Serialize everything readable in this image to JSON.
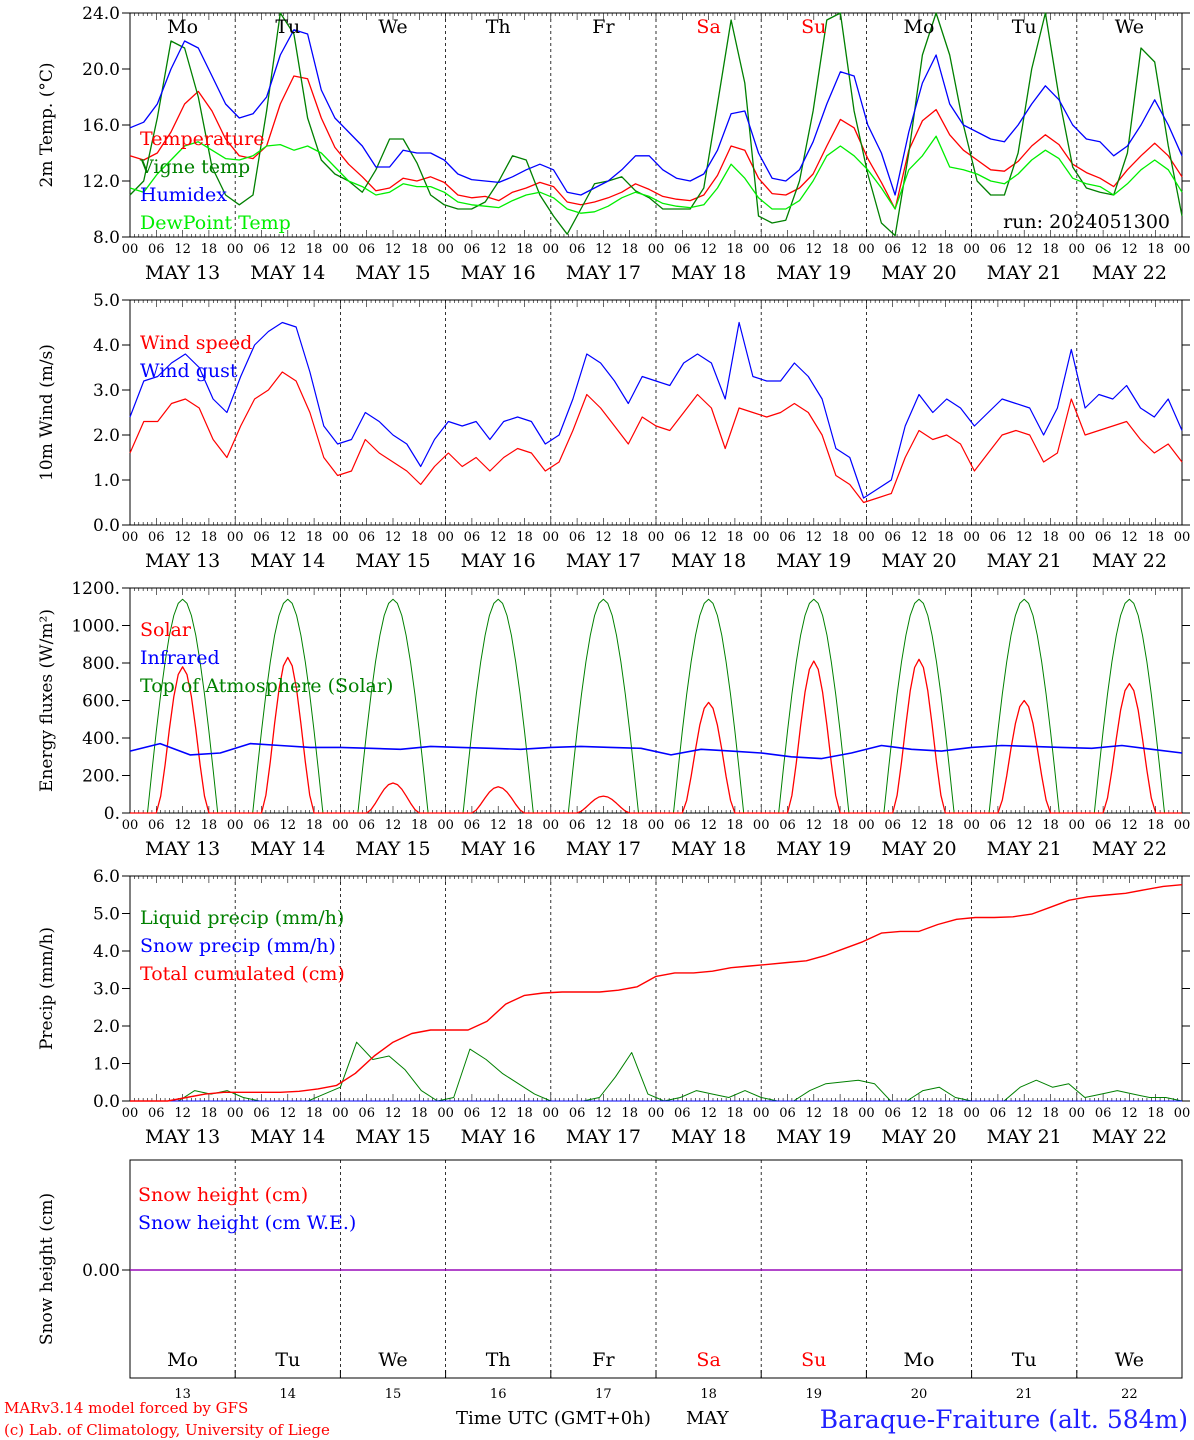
{
  "days": [
    "MAY 13",
    "MAY 14",
    "MAY 15",
    "MAY 16",
    "MAY 17",
    "MAY 18",
    "MAY 19",
    "MAY 20",
    "MAY 21",
    "MAY 22"
  ],
  "weekdays": [
    "Mo",
    "Tu",
    "We",
    "Th",
    "Fr",
    "Sa",
    "Su",
    "Mo",
    "Tu",
    "We"
  ],
  "weekday_colors": [
    "#000000",
    "#000000",
    "#000000",
    "#000000",
    "#000000",
    "#ff0000",
    "#ff0000",
    "#000000",
    "#000000",
    "#000000"
  ],
  "hour_ticks": [
    "00",
    "06",
    "12",
    "18"
  ],
  "day_numbers": [
    "13",
    "14",
    "15",
    "16",
    "17",
    "18",
    "19",
    "20",
    "21",
    "22"
  ],
  "run_label": "run: 2024051300",
  "footer": {
    "credit_line1": "MARv3.14 model forced by GFS",
    "credit_line2": "(c) Lab. of Climatology, University of Liege",
    "time_label": "Time UTC (GMT+0h)",
    "month": "MAY",
    "station": "Baraque-Fraiture (alt. 584m)"
  },
  "chart_data": [
    {
      "type": "line",
      "id": "temp",
      "ylabel": "2m Temp. (°C)",
      "ylim": [
        8,
        24
      ],
      "yticks": [
        "8.0",
        "12.0",
        "16.0",
        "20.0",
        "24.0"
      ],
      "series": [
        {
          "name": "Temperature",
          "color": "#ff0000",
          "values": [
            13.8,
            13.5,
            14,
            15.5,
            17.5,
            18.4,
            17,
            15,
            13.8,
            13.6,
            14.5,
            17.5,
            19.5,
            19.3,
            16.5,
            14.4,
            13.2,
            12.3,
            11.3,
            11.5,
            12.2,
            12,
            12.3,
            11.9,
            11,
            10.8,
            10.9,
            10.6,
            11.2,
            11.5,
            11.9,
            11.6,
            10.5,
            10.3,
            10.5,
            10.8,
            11.2,
            11.8,
            11.4,
            10.9,
            10.7,
            10.6,
            11,
            12.4,
            14.5,
            14.2,
            12.2,
            11.1,
            11,
            11.5,
            12.5,
            14.5,
            16.4,
            15.8,
            13.6,
            11.9,
            10,
            14.2,
            16.3,
            17.1,
            15.3,
            14.2,
            13.5,
            12.8,
            12.7,
            13.4,
            14.5,
            15.3,
            14.6,
            13.2,
            12.6,
            12.2,
            11.6,
            12.8,
            13.8,
            14.7,
            13.8,
            12.3
          ]
        },
        {
          "name": "Vigne temp",
          "color": "#008000",
          "values": [
            11,
            12,
            16.5,
            22,
            21.5,
            18,
            13,
            11,
            10.3,
            11,
            17,
            24,
            22.5,
            16.5,
            13.5,
            12.5,
            12,
            11.2,
            12.8,
            15,
            15,
            13.3,
            11,
            10.3,
            10,
            10,
            10.5,
            12,
            13.8,
            13.5,
            11,
            9.5,
            8.2,
            10,
            11.8,
            12,
            12.3,
            11.3,
            10.8,
            10,
            10,
            10,
            11.5,
            17.5,
            23.5,
            19,
            9.5,
            9,
            9.2,
            12,
            17,
            23.5,
            24,
            17,
            12.5,
            9,
            8.1,
            14,
            21,
            24.5,
            21,
            16,
            12,
            11,
            11,
            14,
            20,
            24.5,
            18,
            13,
            11.5,
            11.2,
            11,
            14,
            21.5,
            20.5,
            14.5,
            9.5
          ]
        },
        {
          "name": "Humidex",
          "color": "#0000ff",
          "values": [
            15.8,
            16.2,
            17.5,
            20,
            22,
            21.5,
            19.5,
            17.5,
            16.5,
            16.8,
            18,
            21,
            22.8,
            22.5,
            18.5,
            16.5,
            15.5,
            14.5,
            13,
            13,
            14.2,
            14,
            14,
            13.5,
            12.5,
            12.1,
            12,
            11.9,
            12.3,
            12.8,
            13.2,
            12.8,
            11.2,
            11,
            11.5,
            12,
            12.8,
            13.8,
            13.8,
            12.8,
            12.2,
            12,
            12.5,
            14.2,
            16.8,
            17,
            14,
            12.2,
            12,
            12.8,
            14.8,
            17.5,
            19.8,
            19.5,
            16,
            14,
            11,
            15.5,
            19,
            21,
            17.5,
            16,
            15.5,
            15,
            14.8,
            16,
            17.5,
            18.8,
            17.8,
            16,
            15,
            14.8,
            13.8,
            14.5,
            16,
            17.8,
            16,
            13.8
          ]
        },
        {
          "name": "DewPoint Temp",
          "color": "#00ee00",
          "values": [
            11.5,
            11.2,
            12.5,
            13.5,
            14.5,
            14.8,
            14.2,
            13.6,
            13.5,
            13.8,
            14.5,
            14.6,
            14.2,
            14.5,
            14,
            13,
            12,
            11.6,
            11,
            11.2,
            11.8,
            11.6,
            11.6,
            11.2,
            10.5,
            10.3,
            10.2,
            10.1,
            10.6,
            11,
            11.2,
            10.8,
            10,
            9.7,
            9.8,
            10.2,
            10.8,
            11.2,
            10.9,
            10.4,
            10.2,
            10.1,
            10.3,
            11.5,
            13.2,
            12.2,
            10.8,
            10,
            10,
            10.6,
            12,
            13.8,
            14.5,
            13.8,
            12.8,
            11.5,
            10,
            12.8,
            13.8,
            15.2,
            13,
            12.8,
            12.5,
            12,
            11.8,
            12.5,
            13.5,
            14.2,
            13.6,
            12.2,
            11.8,
            11.6,
            11,
            11.8,
            12.8,
            13.5,
            12.8,
            11.2
          ]
        }
      ]
    },
    {
      "type": "line",
      "id": "wind",
      "ylabel": "10m Wind (m/s)",
      "ylim": [
        0,
        5
      ],
      "yticks": [
        "0.0",
        "1.0",
        "2.0",
        "3.0",
        "4.0",
        "5.0"
      ],
      "series": [
        {
          "name": "Wind speed",
          "color": "#ff0000",
          "values": [
            1.6,
            2.3,
            2.3,
            2.7,
            2.8,
            2.6,
            1.9,
            1.5,
            2.2,
            2.8,
            3.0,
            3.4,
            3.2,
            2.5,
            1.5,
            1.1,
            1.2,
            1.9,
            1.6,
            1.4,
            1.2,
            0.9,
            1.3,
            1.6,
            1.3,
            1.5,
            1.2,
            1.5,
            1.7,
            1.6,
            1.2,
            1.4,
            2.1,
            2.9,
            2.6,
            2.2,
            1.8,
            2.4,
            2.2,
            2.1,
            2.5,
            2.9,
            2.6,
            1.7,
            2.6,
            2.5,
            2.4,
            2.5,
            2.7,
            2.5,
            2.0,
            1.1,
            0.9,
            0.5,
            0.6,
            0.7,
            1.5,
            2.1,
            1.9,
            2.0,
            1.8,
            1.2,
            1.6,
            2.0,
            2.1,
            2.0,
            1.4,
            1.6,
            2.8,
            2.0,
            2.1,
            2.2,
            2.3,
            1.9,
            1.6,
            1.8,
            1.4
          ]
        },
        {
          "name": "Wind gust",
          "color": "#0000ff",
          "values": [
            2.4,
            3.2,
            3.3,
            3.6,
            3.8,
            3.5,
            2.8,
            2.5,
            3.3,
            4.0,
            4.3,
            4.5,
            4.4,
            3.4,
            2.2,
            1.8,
            1.9,
            2.5,
            2.3,
            2.0,
            1.8,
            1.3,
            1.9,
            2.3,
            2.2,
            2.3,
            1.9,
            2.3,
            2.4,
            2.3,
            1.8,
            2.0,
            2.8,
            3.8,
            3.6,
            3.2,
            2.7,
            3.3,
            3.2,
            3.1,
            3.6,
            3.8,
            3.6,
            2.8,
            4.5,
            3.3,
            3.2,
            3.2,
            3.6,
            3.3,
            2.8,
            1.7,
            1.5,
            0.6,
            0.8,
            1.0,
            2.2,
            2.9,
            2.5,
            2.8,
            2.6,
            2.2,
            2.5,
            2.8,
            2.7,
            2.6,
            2.0,
            2.6,
            3.9,
            2.6,
            2.9,
            2.8,
            3.1,
            2.6,
            2.4,
            2.8,
            2.1
          ]
        }
      ]
    },
    {
      "type": "line",
      "id": "energy",
      "ylabel": "Energy fluxes (W/m²)",
      "ylim": [
        0,
        1200
      ],
      "yticks": [
        "0.",
        "200.",
        "400.",
        "600.",
        "800.",
        "1000.",
        "1200."
      ],
      "series": [
        {
          "name": "Solar",
          "color": "#ff0000"
        },
        {
          "name": "Infrared",
          "color": "#0000ff"
        },
        {
          "name": "Top of Atmosphere (Solar)",
          "color": "#008000"
        }
      ],
      "solar_peaks": [
        780,
        830,
        160,
        140,
        90,
        590,
        810,
        820,
        600,
        690
      ],
      "toa_peak": 1140,
      "infrared": [
        330,
        370,
        310,
        320,
        370,
        360,
        350,
        350,
        345,
        340,
        355,
        350,
        345,
        340,
        350,
        355,
        350,
        345,
        310,
        340,
        330,
        320,
        300,
        290,
        320,
        360,
        340,
        330,
        350,
        360,
        355,
        350,
        345,
        360,
        340,
        320
      ]
    },
    {
      "type": "line",
      "id": "precip",
      "ylabel": "Precip (mm/h)",
      "ylim": [
        0,
        6.5
      ],
      "yticks": [
        "0.0",
        "1.0",
        "2.0",
        "3.0",
        "4.0",
        "5.0",
        "6.0"
      ],
      "series": [
        {
          "name": "Liquid precip (mm/h)",
          "color": "#008000"
        },
        {
          "name": "Snow precip (mm/h)",
          "color": "#0000ff"
        },
        {
          "name": "Total cumulated (cm)",
          "color": "#ff0000"
        }
      ],
      "cumulative": [
        0,
        0,
        0,
        0.1,
        0.2,
        0.25,
        0.25,
        0.25,
        0.25,
        0.28,
        0.35,
        0.45,
        0.8,
        1.3,
        1.7,
        1.95,
        2.05,
        2.05,
        2.05,
        2.3,
        2.8,
        3.05,
        3.12,
        3.15,
        3.15,
        3.15,
        3.2,
        3.3,
        3.6,
        3.7,
        3.7,
        3.75,
        3.85,
        3.9,
        3.95,
        4.0,
        4.05,
        4.2,
        4.4,
        4.6,
        4.85,
        4.9,
        4.9,
        5.1,
        5.25,
        5.3,
        5.3,
        5.32,
        5.4,
        5.6,
        5.8,
        5.9,
        5.95,
        6.0,
        6.1,
        6.2,
        6.25
      ],
      "liquid": [
        0,
        0,
        0,
        0,
        0.3,
        0.2,
        0.3,
        0.1,
        0,
        0,
        0,
        0,
        0.2,
        0.4,
        1.7,
        1.2,
        1.3,
        0.9,
        0.3,
        0,
        0.1,
        1.5,
        1.2,
        0.8,
        0.5,
        0.2,
        0,
        0,
        0,
        0.1,
        0.7,
        1.4,
        0.2,
        0,
        0.1,
        0.3,
        0.2,
        0.1,
        0.3,
        0.1,
        0,
        0,
        0.3,
        0.5,
        0.55,
        0.6,
        0.5,
        0,
        0,
        0.3,
        0.4,
        0.1,
        0,
        0,
        0,
        0.4,
        0.6,
        0.4,
        0.5,
        0.1,
        0.2,
        0.3,
        0.2,
        0.1,
        0.1,
        0
      ]
    },
    {
      "type": "line",
      "id": "snow",
      "ylabel": "Snow height (cm)",
      "yticks": [
        "0.00"
      ],
      "series": [
        {
          "name": "Snow height (cm)",
          "color": "#ff0000",
          "values": [
            0,
            0
          ]
        },
        {
          "name": "Snow height (cm W.E.)",
          "color": "#0000ff",
          "values": [
            0,
            0
          ]
        }
      ]
    }
  ]
}
